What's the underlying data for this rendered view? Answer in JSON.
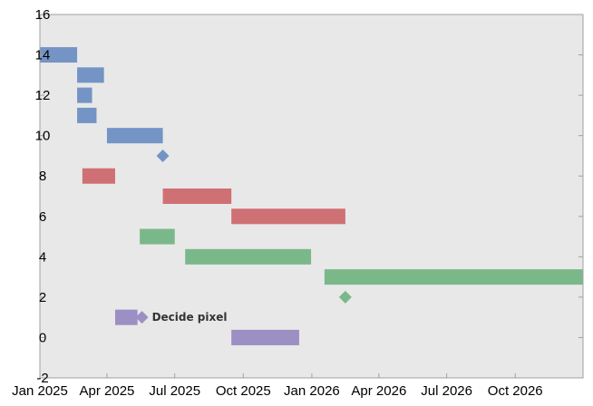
{
  "chart_data": {
    "type": "gantt",
    "title": "",
    "xlabel": "",
    "ylabel": "",
    "x_axis": {
      "type": "date",
      "range": [
        "2025-01-01",
        "2026-12-31"
      ]
    },
    "ylim": [
      -2,
      16
    ],
    "grid": false,
    "background": "#e8e8e8",
    "x_ticks": [
      {
        "date": "2025-01-01",
        "label": "Jan 2025"
      },
      {
        "date": "2025-04-01",
        "label": "Apr 2025"
      },
      {
        "date": "2025-07-01",
        "label": "Jul 2025"
      },
      {
        "date": "2025-10-01",
        "label": "Oct 2025"
      },
      {
        "date": "2026-01-01",
        "label": "Jan 2026"
      },
      {
        "date": "2026-04-01",
        "label": "Apr 2026"
      },
      {
        "date": "2026-07-01",
        "label": "Jul 2026"
      },
      {
        "date": "2026-10-01",
        "label": "Oct 2026"
      }
    ],
    "y_ticks": [
      {
        "value": 16,
        "label": "16"
      },
      {
        "value": 14,
        "label": "14"
      },
      {
        "value": 12,
        "label": "12"
      },
      {
        "value": 10,
        "label": "10"
      },
      {
        "value": 8,
        "label": "8"
      },
      {
        "value": 6,
        "label": "6"
      },
      {
        "value": 4,
        "label": "4"
      },
      {
        "value": 2,
        "label": "2"
      },
      {
        "value": 0,
        "label": "0"
      },
      {
        "value": -2,
        "label": "-2"
      }
    ],
    "colors": {
      "blue": "#7394c4",
      "red": "#cf7075",
      "green": "#7ab88a",
      "purple": "#9c8fc4",
      "axis": "#a0a0a0"
    },
    "tasks": [
      {
        "y": 14,
        "start": "2025-01-01",
        "end": "2025-02-20",
        "color": "blue"
      },
      {
        "y": 13,
        "start": "2025-02-20",
        "end": "2025-03-28",
        "color": "blue"
      },
      {
        "y": 12,
        "start": "2025-02-20",
        "end": "2025-03-12",
        "color": "blue"
      },
      {
        "y": 11,
        "start": "2025-02-20",
        "end": "2025-03-18",
        "color": "blue"
      },
      {
        "y": 10,
        "start": "2025-04-01",
        "end": "2025-06-15",
        "color": "blue"
      },
      {
        "y": 8,
        "start": "2025-02-27",
        "end": "2025-04-12",
        "color": "red"
      },
      {
        "y": 7,
        "start": "2025-06-15",
        "end": "2025-09-15",
        "color": "red"
      },
      {
        "y": 6,
        "start": "2025-09-15",
        "end": "2026-02-15",
        "color": "red"
      },
      {
        "y": 5,
        "start": "2025-05-15",
        "end": "2025-07-01",
        "color": "green"
      },
      {
        "y": 4,
        "start": "2025-07-15",
        "end": "2025-12-31",
        "color": "green"
      },
      {
        "y": 3,
        "start": "2026-01-18",
        "end": "2026-12-31",
        "color": "green"
      },
      {
        "y": 1,
        "start": "2025-04-12",
        "end": "2025-05-12",
        "color": "purple"
      },
      {
        "y": 0,
        "start": "2025-09-15",
        "end": "2025-12-15",
        "color": "purple"
      }
    ],
    "milestones": [
      {
        "y": 9,
        "date": "2025-06-15",
        "color": "blue",
        "label": ""
      },
      {
        "y": 2,
        "date": "2026-02-15",
        "color": "green",
        "label": ""
      },
      {
        "y": 1,
        "date": "2025-05-18",
        "color": "purple",
        "label": "Decide pixel"
      }
    ]
  }
}
